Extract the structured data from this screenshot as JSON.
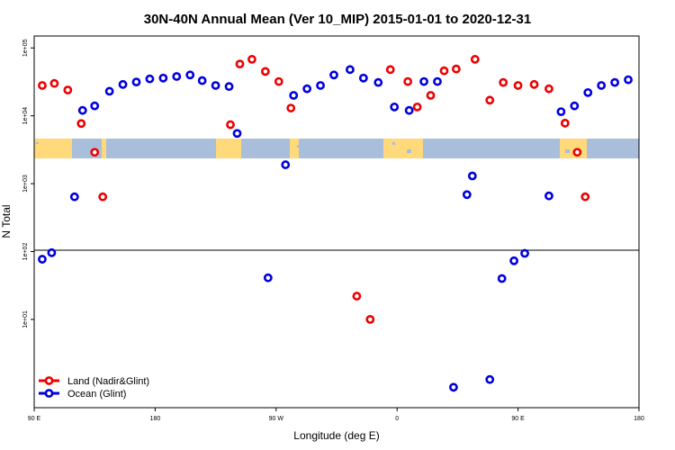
{
  "chart_data": {
    "type": "scatter",
    "title": "30N-40N Annual Mean (Ver 10_MIP)   2015-01-01 to 2020-12-31",
    "xlabel": "Longitude (deg E)",
    "ylabel": "N Total",
    "yscale": "log",
    "xlim": [
      90,
      540
    ],
    "ylim": [
      0.5,
      150000
    ],
    "x_ticks": [
      {
        "value": 90,
        "label": "90 E"
      },
      {
        "value": 180,
        "label": "180"
      },
      {
        "value": 270,
        "label": "90 W"
      },
      {
        "value": 360,
        "label": "0"
      },
      {
        "value": 450,
        "label": "90 E"
      },
      {
        "value": 540,
        "label": "180"
      }
    ],
    "y_ticks": [
      {
        "value": 10,
        "label": "1e+01"
      },
      {
        "value": 100,
        "label": "1e+02"
      },
      {
        "value": 1000,
        "label": "1e+03"
      },
      {
        "value": 10000,
        "label": "1e+04"
      },
      {
        "value": 100000,
        "label": "1e+05"
      }
    ],
    "map_band": {
      "ocean_color": "#a9bedb",
      "land_color": "#ffd97a"
    },
    "legend": [
      {
        "name": "Land (Nadir&Glint)",
        "color": "#ee0000"
      },
      {
        "name": "Ocean (Glint)",
        "color": "#0000dd"
      }
    ],
    "series": [
      {
        "name": "Land (Nadir&Glint)",
        "color": "#ee0000",
        "points": [
          [
            96,
            28000
          ],
          [
            105,
            30000
          ],
          [
            115,
            24000
          ],
          [
            125,
            7700
          ],
          [
            135,
            2900
          ],
          [
            141,
            640
          ],
          [
            236,
            7400
          ],
          [
            243,
            58000
          ],
          [
            252,
            68000
          ],
          [
            262,
            45000
          ],
          [
            272,
            32000
          ],
          [
            281,
            13000
          ],
          [
            330,
            22
          ],
          [
            340,
            10
          ],
          [
            355,
            48000
          ],
          [
            368,
            32000
          ],
          [
            375,
            13500
          ],
          [
            385,
            20000
          ],
          [
            395,
            46000
          ],
          [
            404,
            49000
          ],
          [
            418,
            68000
          ],
          [
            429,
            17000
          ],
          [
            439,
            31000
          ],
          [
            450,
            28000
          ],
          [
            462,
            29000
          ],
          [
            473,
            25000
          ],
          [
            485,
            7800
          ],
          [
            494,
            2900
          ],
          [
            500,
            640
          ]
        ]
      },
      {
        "name": "Ocean (Glint)",
        "color": "#0000dd",
        "points": [
          [
            96,
            77
          ],
          [
            103,
            96
          ],
          [
            120,
            640
          ],
          [
            126,
            12000
          ],
          [
            135,
            14000
          ],
          [
            146,
            23000
          ],
          [
            156,
            29000
          ],
          [
            166,
            31500
          ],
          [
            176,
            35000
          ],
          [
            186,
            36000
          ],
          [
            196,
            38000
          ],
          [
            206,
            40000
          ],
          [
            215,
            33000
          ],
          [
            225,
            28000
          ],
          [
            235,
            27000
          ],
          [
            241,
            5500
          ],
          [
            264,
            41
          ],
          [
            277,
            1900
          ],
          [
            283,
            20000
          ],
          [
            293,
            25000
          ],
          [
            303,
            28000
          ],
          [
            313,
            40000
          ],
          [
            325,
            48000
          ],
          [
            335,
            36000
          ],
          [
            346,
            31000
          ],
          [
            358,
            13500
          ],
          [
            369,
            12000
          ],
          [
            380,
            32000
          ],
          [
            390,
            32000
          ],
          [
            402,
            1.0
          ],
          [
            412,
            690
          ],
          [
            416,
            1300
          ],
          [
            429,
            1.3
          ],
          [
            438,
            40
          ],
          [
            447,
            73
          ],
          [
            455,
            94
          ],
          [
            473,
            660
          ],
          [
            482,
            11500
          ],
          [
            492,
            14000
          ],
          [
            502,
            22000
          ],
          [
            512,
            28000
          ],
          [
            522,
            31000
          ],
          [
            532,
            34000
          ]
        ]
      }
    ]
  }
}
